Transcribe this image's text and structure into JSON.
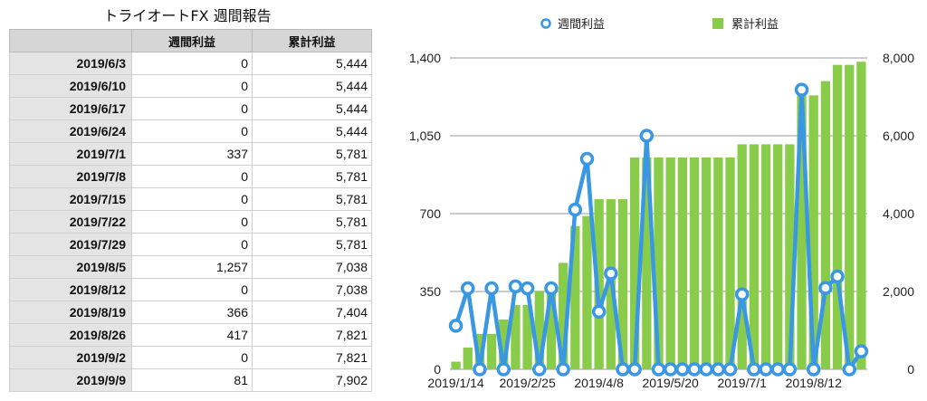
{
  "table": {
    "title": "トライオートFX 週間報告",
    "headers": [
      "",
      "週間利益",
      "累計利益"
    ],
    "rows": [
      [
        "2019/6/3",
        "0",
        "5,444"
      ],
      [
        "2019/6/10",
        "0",
        "5,444"
      ],
      [
        "2019/6/17",
        "0",
        "5,444"
      ],
      [
        "2019/6/24",
        "0",
        "5,444"
      ],
      [
        "2019/7/1",
        "337",
        "5,781"
      ],
      [
        "2019/7/8",
        "0",
        "5,781"
      ],
      [
        "2019/7/15",
        "0",
        "5,781"
      ],
      [
        "2019/7/22",
        "0",
        "5,781"
      ],
      [
        "2019/7/29",
        "0",
        "5,781"
      ],
      [
        "2019/8/5",
        "1,257",
        "7,038"
      ],
      [
        "2019/8/12",
        "0",
        "7,038"
      ],
      [
        "2019/8/19",
        "366",
        "7,404"
      ],
      [
        "2019/8/26",
        "417",
        "7,821"
      ],
      [
        "2019/9/2",
        "0",
        "7,821"
      ],
      [
        "2019/9/9",
        "81",
        "7,902"
      ]
    ]
  },
  "chart_data": {
    "type": "bar",
    "legend": [
      "週間利益",
      "累計利益"
    ],
    "legend_position": "top",
    "x_tick_labels": [
      "2019/1/14",
      "2019/2/25",
      "2019/4/8",
      "2019/5/20",
      "2019/7/1",
      "2019/8/12"
    ],
    "x_tick_indices": [
      0,
      6,
      12,
      18,
      24,
      30
    ],
    "y_left_ticks": [
      "0",
      "350",
      "700",
      "1,050",
      "1,400"
    ],
    "y_right_ticks": [
      "0",
      "2,000",
      "4,000",
      "6,000",
      "8,000"
    ],
    "ylim_left": [
      0,
      1400
    ],
    "ylim_right": [
      0,
      8000
    ],
    "grid": true,
    "series": [
      {
        "name": "週間利益",
        "type": "line",
        "axis": "left",
        "color": "#3a97e4",
        "values": [
          196,
          364,
          0,
          364,
          0,
          373,
          364,
          0,
          364,
          0,
          718,
          946,
          259,
          431,
          0,
          0,
          1050,
          0,
          0,
          0,
          0,
          0,
          0,
          0,
          337,
          0,
          0,
          0,
          0,
          1257,
          0,
          366,
          417,
          0,
          81
        ]
      },
      {
        "name": "累計利益",
        "type": "bar",
        "axis": "right",
        "color": "#88cc4a",
        "values": [
          196,
          560,
          910,
          910,
          1280,
          1653,
          1653,
          2017,
          2017,
          2735,
          3681,
          3940,
          4371,
          4371,
          4371,
          5444,
          5444,
          5444,
          5444,
          5444,
          5444,
          5444,
          5444,
          5444,
          5781,
          5781,
          5781,
          5781,
          5781,
          7038,
          7038,
          7404,
          7821,
          7821,
          7902
        ]
      }
    ]
  }
}
